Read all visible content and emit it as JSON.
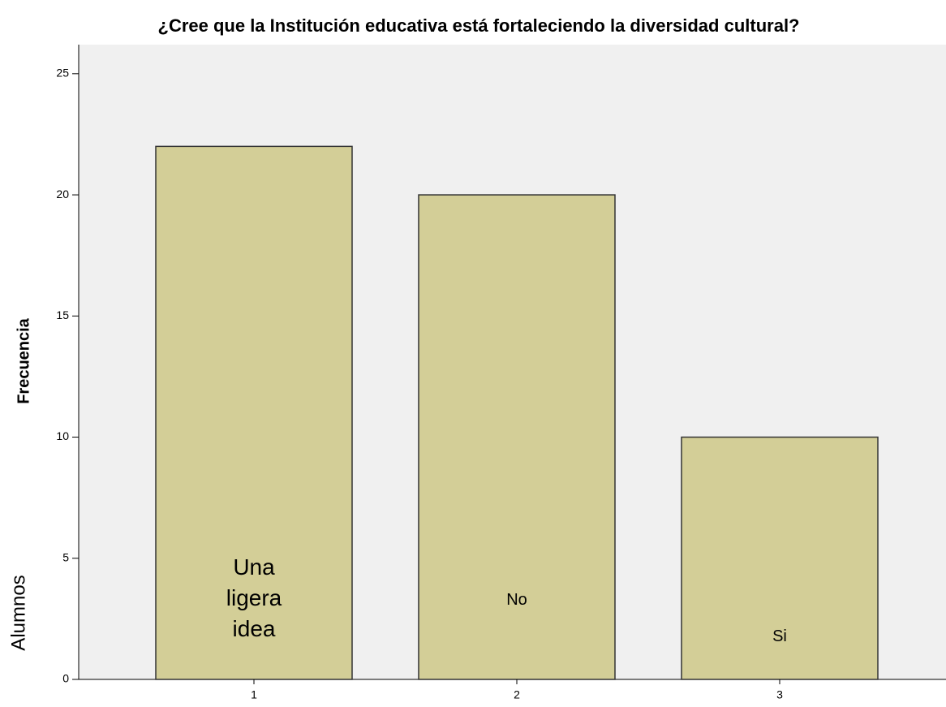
{
  "chart_data": {
    "type": "bar",
    "title": "¿Cree que la Institución educativa está fortaleciendo la diversidad cultural?",
    "y_label": "Frecuencia",
    "side_label": "Alumnos",
    "categories": [
      "1",
      "2",
      "3"
    ],
    "values": [
      22,
      20,
      10
    ],
    "bar_labels": [
      "Una ligera idea",
      "No",
      "Si"
    ],
    "color": "#d3ce97",
    "ylim": [
      0,
      26.2
    ],
    "yticks": [
      0,
      5,
      10,
      15,
      20,
      25
    ]
  }
}
